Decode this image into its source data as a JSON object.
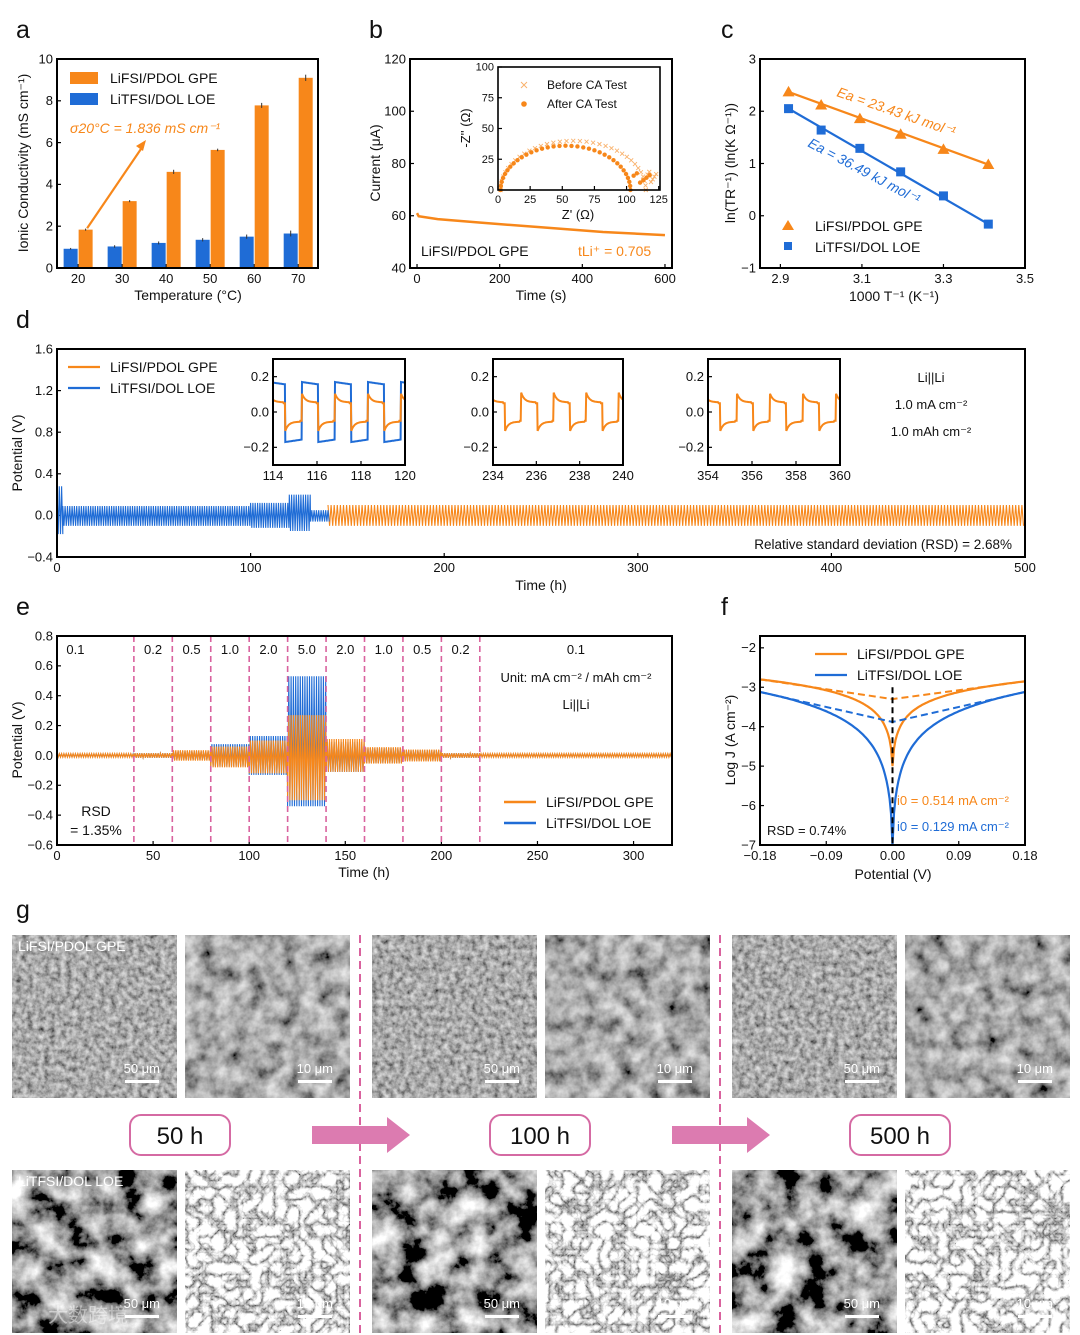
{
  "colors": {
    "gpe": "#f7871a",
    "loe": "#1f6cd6",
    "divider": "#d9629e",
    "arrow": "#dc7bb0"
  },
  "panel_letters": [
    "a",
    "b",
    "c",
    "d",
    "e",
    "f",
    "g"
  ],
  "chart_data": [
    {
      "panel": "a",
      "type": "bar",
      "categories": [
        20,
        30,
        40,
        50,
        60,
        70
      ],
      "xticks": [
        "20",
        "30",
        "40",
        "50",
        "60",
        "70"
      ],
      "yticks": [
        "0",
        "2",
        "4",
        "6",
        "8",
        "10"
      ],
      "ylim": [
        0,
        10
      ],
      "xlabel": "Temperature (°C)",
      "ylabel": "Ionic Conductivity (mS cm⁻¹)",
      "series": [
        {
          "name": "LiFSI/PDOL GPE",
          "values": [
            1.836,
            3.2,
            4.6,
            5.65,
            7.78,
            9.1
          ],
          "errors": [
            0.05,
            0.05,
            0.1,
            0.06,
            0.12,
            0.15
          ]
        },
        {
          "name": "LiTFSI/DOL LOE",
          "values": [
            0.92,
            1.03,
            1.2,
            1.35,
            1.5,
            1.65
          ],
          "errors": [
            0.04,
            0.06,
            0.07,
            0.08,
            0.1,
            0.14
          ]
        }
      ],
      "annotation": "σ20°C = 1.836 mS cm⁻¹",
      "legend": "top-left"
    },
    {
      "panel": "b",
      "type": "line",
      "xlabel": "Time (s)",
      "ylabel": "Current (μA)",
      "xticks": [
        "0",
        "200",
        "400",
        "600"
      ],
      "yticks": [
        "40",
        "60",
        "80",
        "100",
        "120"
      ],
      "ylim": [
        40,
        120
      ],
      "series": [
        {
          "name": "LiFSI/PDOL GPE",
          "points": [
            [
              0,
              61
            ],
            [
              4,
              59.8
            ],
            [
              50,
              58.7
            ],
            [
              150,
              57.4
            ],
            [
              300,
              55.6
            ],
            [
              450,
              53.8
            ],
            [
              600,
              52.6
            ]
          ]
        }
      ],
      "label": "LiFSI/PDOL GPE",
      "annotation": "tLi⁺ = 0.705",
      "inset": {
        "type": "scatter",
        "xlabel": "Z' (Ω)",
        "ylabel": "-Z'' (Ω)",
        "xticks": [
          "0",
          "25",
          "50",
          "75",
          "100",
          "125"
        ],
        "yticks": [
          "0",
          "25",
          "50",
          "75",
          "100"
        ],
        "series": [
          {
            "name": "Before CA Test",
            "marker": "x",
            "start": 2,
            "end": 115,
            "peak": 40,
            "tail_end": [
              123,
              13
            ]
          },
          {
            "name": "After CA Test",
            "marker": "dot",
            "start": 2,
            "end": 103,
            "peak": 36,
            "tail_end": [
              118,
              12
            ]
          }
        ]
      }
    },
    {
      "panel": "c",
      "type": "scatter",
      "xlabel": "1000 T⁻¹ (K⁻¹)",
      "ylabel": "ln(TR⁻¹) (ln(K Ω⁻¹))",
      "xticks": [
        "2.9",
        "3.1",
        "3.3",
        "3.5"
      ],
      "yticks": [
        "−1",
        "0",
        "1",
        "2",
        "3"
      ],
      "xlim": [
        2.85,
        3.5
      ],
      "ylim": [
        -1,
        3
      ],
      "series": [
        {
          "name": "LiFSI/PDOL GPE",
          "marker": "triangle",
          "x": [
            2.92,
            3.0,
            3.095,
            3.195,
            3.3,
            3.41
          ],
          "y": [
            2.37,
            2.12,
            1.86,
            1.56,
            1.27,
            0.98
          ],
          "annotation": "Ea = 23.43 kJ mol⁻¹"
        },
        {
          "name": "LiTFSI/DOL LOE",
          "marker": "square",
          "x": [
            2.92,
            3.0,
            3.095,
            3.195,
            3.3,
            3.41
          ],
          "y": [
            2.05,
            1.64,
            1.29,
            0.84,
            0.38,
            -0.16
          ],
          "annotation": "Ea = 36.49 kJ mol⁻¹"
        }
      ],
      "legend": "bottom-left"
    },
    {
      "panel": "d",
      "type": "line",
      "xlabel": "Time (h)",
      "ylabel": "Potential (V)",
      "xticks": [
        "0",
        "100",
        "200",
        "300",
        "400",
        "500"
      ],
      "yticks": [
        "−0.4",
        "0.0",
        "0.4",
        "0.8",
        "1.2",
        "1.6"
      ],
      "xlim": [
        0,
        500
      ],
      "ylim": [
        -0.4,
        1.6
      ],
      "series": [
        {
          "name": "LiFSI/PDOL GPE",
          "segments": [
            {
              "t0": 140,
              "t1": 500,
              "pos": 0.1,
              "neg": 0.1
            }
          ]
        },
        {
          "name": "LiTFSI/DOL LOE",
          "segments": [
            {
              "t0": 0,
              "t1": 3,
              "pos": 0.28,
              "neg": 0.18
            },
            {
              "t0": 3,
              "t1": 100,
              "pos": 0.09,
              "neg": 0.1
            },
            {
              "t0": 100,
              "t1": 120,
              "pos": 0.12,
              "neg": 0.12
            },
            {
              "t0": 120,
              "t1": 131,
              "pos": 0.2,
              "neg": 0.15
            },
            {
              "t0": 131,
              "t1": 141,
              "pos": 0.05,
              "neg": 0.06
            }
          ]
        }
      ],
      "cell_info": [
        "Li||Li",
        "1.0 mA cm⁻²",
        "1.0 mAh cm⁻²"
      ],
      "rsd": "Relative standard deviation (RSD) = 2.68%",
      "insets": [
        {
          "xticks": [
            "114",
            "116",
            "118",
            "120"
          ],
          "yticks": [
            "0.2",
            "0.0",
            "−0.2"
          ],
          "range": [
            114,
            120
          ],
          "series": [
            {
              "name": "LiFSI/PDOL GPE",
              "amp": 0.11
            },
            {
              "name": "LiTFSI/DOL LOE",
              "amp": 0.17
            }
          ]
        },
        {
          "xticks": [
            "234",
            "236",
            "238",
            "240"
          ],
          "yticks": [
            "0.2",
            "0.0",
            "−0.2"
          ],
          "range": [
            234,
            240
          ],
          "series": [
            {
              "name": "LiFSI/PDOL GPE",
              "amp": 0.11
            }
          ]
        },
        {
          "xticks": [
            "354",
            "356",
            "358",
            "360"
          ],
          "yticks": [
            "0.2",
            "0.0",
            "−0.2"
          ],
          "range": [
            354,
            360
          ],
          "series": [
            {
              "name": "LiFSI/PDOL GPE",
              "amp": 0.11
            }
          ]
        }
      ]
    },
    {
      "panel": "e",
      "type": "line",
      "xlabel": "Time (h)",
      "ylabel": "Potential (V)",
      "xticks": [
        "0",
        "50",
        "100",
        "150",
        "200",
        "250",
        "300"
      ],
      "yticks": [
        "−0.6",
        "−0.4",
        "−0.2",
        "0.0",
        "0.2",
        "0.4",
        "0.6",
        "0.8"
      ],
      "xlim": [
        0,
        320
      ],
      "ylim": [
        -0.6,
        0.8
      ],
      "boundaries": [
        0,
        40,
        60,
        80,
        100,
        120,
        140,
        160,
        180,
        200,
        220,
        320
      ],
      "rates": [
        "0.1",
        "0.2",
        "0.5",
        "1.0",
        "2.0",
        "5.0",
        "2.0",
        "1.0",
        "0.5",
        "0.2",
        "0.1"
      ],
      "series": [
        {
          "name": "LiTFSI/DOL LOE",
          "pos": [
            0.01,
            0.015,
            0.03,
            0.075,
            0.13,
            0.53,
            0.09,
            0.05,
            0.035,
            0.015,
            0.01
          ],
          "neg": [
            0.01,
            0.015,
            0.03,
            0.075,
            0.13,
            0.34,
            0.11,
            0.05,
            0.035,
            0.015,
            0.01
          ]
        },
        {
          "name": "LiFSI/PDOL GPE",
          "pos": [
            0.012,
            0.015,
            0.035,
            0.06,
            0.1,
            0.27,
            0.11,
            0.055,
            0.04,
            0.015,
            0.012
          ],
          "neg": [
            0.012,
            0.015,
            0.035,
            0.08,
            0.12,
            0.3,
            0.11,
            0.055,
            0.04,
            0.015,
            0.012
          ]
        }
      ],
      "unit_label": "Unit: mA cm⁻² / mAh cm⁻²",
      "cell": "Li||Li",
      "rsd": [
        "RSD",
        "= 1.35%"
      ]
    },
    {
      "panel": "f",
      "type": "line",
      "xlabel": "Potential (V)",
      "ylabel": "Log J (A cm⁻²)",
      "xticks": [
        "−0.18",
        "−0.09",
        "0.00",
        "0.09",
        "0.18"
      ],
      "yticks": [
        "−7",
        "−6",
        "−5",
        "−4",
        "−3",
        "−2"
      ],
      "xlim": [
        -0.18,
        0.18
      ],
      "ylim": [
        -7,
        -1.7
      ],
      "series": [
        {
          "name": "LiFSI/PDOL GPE",
          "min": -5.0,
          "left_end": -2.8,
          "right_end": -2.85,
          "tafel_intercept": -3.3,
          "annotation": "i0 = 0.514 mA cm⁻²"
        },
        {
          "name": "LiTFSI/DOL LOE",
          "min": -7.0,
          "left_end": -3.12,
          "right_end": -3.12,
          "tafel_intercept": -3.88,
          "annotation": "i0 = 0.129 mA cm⁻²"
        }
      ],
      "rsd": "RSD = 0.74%"
    }
  ],
  "sem": {
    "rows": [
      "LiFSI/PDOL GPE",
      "LiTFSI/DOL LOE"
    ],
    "times": [
      "50 h",
      "100 h",
      "500 h"
    ],
    "scale_bars": [
      "50 μm",
      "10 μm",
      "50 μm",
      "10 μm",
      "50 μm",
      "10 μm"
    ]
  },
  "watermark": "大数跨境"
}
